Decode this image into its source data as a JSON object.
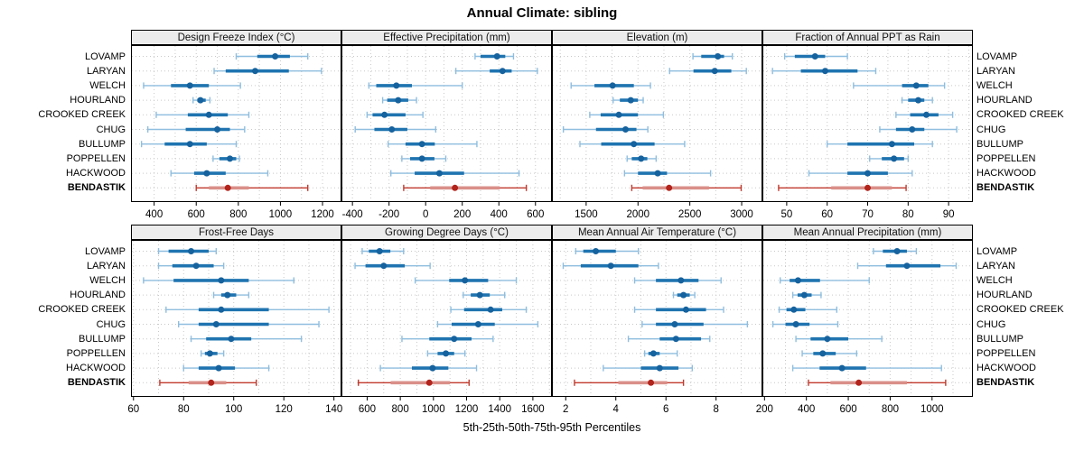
{
  "title": "Annual Climate: sibling",
  "xlabel": "5th-25th-50th-75th-95th Percentiles",
  "percentile_labels": [
    "5th",
    "25th",
    "50th",
    "75th",
    "95th"
  ],
  "stations": [
    "LOVAMP",
    "LARYAN",
    "WELCH",
    "HOURLAND",
    "CROOKED CREEK",
    "CHUG",
    "BULLUMP",
    "POPPELLEN",
    "HACKWOOD",
    "BENDASTIK"
  ],
  "highlight_station": "BENDASTIK",
  "colors": {
    "blue_thin": "#8FBEDF",
    "blue_thick": "#1F74B0",
    "blue_dot": "#15629E",
    "red_thin": "#C03A2E",
    "red_thick": "#D98F88",
    "red_dot": "#B2241C",
    "grid": "#C9C9C9",
    "strip_bg": "#ECECEC",
    "border": "#000000"
  },
  "chart_data": [
    {
      "type": "interval-dotplot",
      "title": "Design Freeze Index (°C)",
      "xlim": [
        290,
        1290
      ],
      "ticks": [
        400,
        600,
        800,
        1000,
        1200
      ],
      "rows": [
        {
          "station": "LOVAMP",
          "percentiles": [
            790,
            890,
            975,
            1045,
            1130
          ]
        },
        {
          "station": "LARYAN",
          "percentiles": [
            685,
            740,
            880,
            1040,
            1195
          ]
        },
        {
          "station": "WELCH",
          "percentiles": [
            350,
            480,
            570,
            660,
            810
          ]
        },
        {
          "station": "HOURLAND",
          "percentiles": [
            585,
            605,
            620,
            645,
            665
          ]
        },
        {
          "station": "CROOKED CREEK",
          "percentiles": [
            410,
            560,
            660,
            750,
            850
          ]
        },
        {
          "station": "CHUG",
          "percentiles": [
            370,
            550,
            700,
            760,
            830
          ]
        },
        {
          "station": "BULLUMP",
          "percentiles": [
            340,
            450,
            570,
            650,
            790
          ]
        },
        {
          "station": "POPPELLEN",
          "percentiles": [
            680,
            710,
            760,
            790,
            805
          ]
        },
        {
          "station": "HACKWOOD",
          "percentiles": [
            480,
            590,
            650,
            740,
            940
          ]
        },
        {
          "station": "BENDASTIK",
          "percentiles": [
            600,
            660,
            750,
            850,
            1130
          ]
        }
      ]
    },
    {
      "type": "interval-dotplot",
      "title": "Effective Precipitation (mm)",
      "xlim": [
        -460,
        690
      ],
      "ticks": [
        -400,
        -200,
        0,
        200,
        400,
        600
      ],
      "rows": [
        {
          "station": "LOVAMP",
          "percentiles": [
            270,
            300,
            390,
            435,
            480
          ]
        },
        {
          "station": "LARYAN",
          "percentiles": [
            165,
            350,
            420,
            470,
            610
          ]
        },
        {
          "station": "WELCH",
          "percentiles": [
            -310,
            -270,
            -160,
            -75,
            200
          ]
        },
        {
          "station": "HOURLAND",
          "percentiles": [
            -235,
            -210,
            -150,
            -95,
            -50
          ]
        },
        {
          "station": "CROOKED CREEK",
          "percentiles": [
            -320,
            -290,
            -225,
            -110,
            -15
          ]
        },
        {
          "station": "CHUG",
          "percentiles": [
            -385,
            -280,
            -185,
            -100,
            55
          ]
        },
        {
          "station": "BULLUMP",
          "percentiles": [
            -205,
            -110,
            -20,
            50,
            280
          ]
        },
        {
          "station": "POPPELLEN",
          "percentiles": [
            -130,
            -85,
            -20,
            48,
            110
          ]
        },
        {
          "station": "HACKWOOD",
          "percentiles": [
            -190,
            -60,
            75,
            210,
            510
          ]
        },
        {
          "station": "BENDASTIK",
          "percentiles": [
            -120,
            25,
            160,
            405,
            550
          ]
        }
      ]
    },
    {
      "type": "interval-dotplot",
      "title": "Elevation (m)",
      "xlim": [
        1170,
        3200
      ],
      "ticks": [
        1500,
        2000,
        2500,
        3000
      ],
      "rows": [
        {
          "station": "LOVAMP",
          "percentiles": [
            2530,
            2610,
            2770,
            2830,
            2910
          ]
        },
        {
          "station": "LARYAN",
          "percentiles": [
            2305,
            2535,
            2740,
            2900,
            3045
          ]
        },
        {
          "station": "WELCH",
          "percentiles": [
            1355,
            1580,
            1755,
            1960,
            2120
          ]
        },
        {
          "station": "HOURLAND",
          "percentiles": [
            1760,
            1825,
            1930,
            2000,
            2050
          ]
        },
        {
          "station": "CROOKED CREEK",
          "percentiles": [
            1535,
            1640,
            1815,
            2000,
            2245
          ]
        },
        {
          "station": "CHUG",
          "percentiles": [
            1280,
            1595,
            1880,
            1985,
            2095
          ]
        },
        {
          "station": "BULLUMP",
          "percentiles": [
            1440,
            1645,
            1960,
            2160,
            2450
          ]
        },
        {
          "station": "POPPELLEN",
          "percentiles": [
            1895,
            1940,
            2030,
            2090,
            2175
          ]
        },
        {
          "station": "HACKWOOD",
          "percentiles": [
            1870,
            2000,
            2190,
            2280,
            2700
          ]
        },
        {
          "station": "BENDASTIK",
          "percentiles": [
            1940,
            2045,
            2300,
            2685,
            2995
          ]
        }
      ]
    },
    {
      "type": "interval-dotplot",
      "title": "Fraction of Annual PPT as Rain",
      "xlim": [
        44,
        96
      ],
      "ticks": [
        50,
        60,
        70,
        80,
        90
      ],
      "rows": [
        {
          "station": "LOVAMP",
          "percentiles": [
            49.5,
            52,
            57,
            59.5,
            65
          ]
        },
        {
          "station": "LARYAN",
          "percentiles": [
            46.5,
            53.5,
            59.5,
            67.5,
            72
          ]
        },
        {
          "station": "WELCH",
          "percentiles": [
            66.5,
            78.5,
            82,
            85,
            89
          ]
        },
        {
          "station": "HOURLAND",
          "percentiles": [
            78.5,
            80,
            82.5,
            84,
            86
          ]
        },
        {
          "station": "CROOKED CREEK",
          "percentiles": [
            77,
            80.5,
            84.5,
            87.5,
            91
          ]
        },
        {
          "station": "CHUG",
          "percentiles": [
            73,
            77,
            81,
            84,
            92
          ]
        },
        {
          "station": "BULLUMP",
          "percentiles": [
            60,
            65,
            76,
            81.5,
            86
          ]
        },
        {
          "station": "POPPELLEN",
          "percentiles": [
            70.5,
            73.5,
            76.5,
            79,
            80
          ]
        },
        {
          "station": "HACKWOOD",
          "percentiles": [
            55.5,
            65,
            70,
            75,
            81
          ]
        },
        {
          "station": "BENDASTIK",
          "percentiles": [
            48,
            61,
            70,
            76,
            79.5
          ]
        }
      ]
    },
    {
      "type": "interval-dotplot",
      "title": "Frost-Free Days",
      "xlim": [
        59,
        143
      ],
      "ticks": [
        60,
        80,
        100,
        120,
        140
      ],
      "rows": [
        {
          "station": "LOVAMP",
          "percentiles": [
            70,
            74,
            83,
            90,
            93
          ]
        },
        {
          "station": "LARYAN",
          "percentiles": [
            70,
            75.5,
            85,
            92,
            96
          ]
        },
        {
          "station": "WELCH",
          "percentiles": [
            64,
            76,
            95,
            106,
            124
          ]
        },
        {
          "station": "HOURLAND",
          "percentiles": [
            92,
            95,
            97.5,
            101,
            106
          ]
        },
        {
          "station": "CROOKED CREEK",
          "percentiles": [
            73,
            86,
            95,
            114,
            138
          ]
        },
        {
          "station": "CHUG",
          "percentiles": [
            78,
            86,
            93,
            114,
            134
          ]
        },
        {
          "station": "BULLUMP",
          "percentiles": [
            83,
            89,
            99,
            107,
            127
          ]
        },
        {
          "station": "POPPELLEN",
          "percentiles": [
            87,
            88.5,
            90.5,
            93.5,
            96
          ]
        },
        {
          "station": "HACKWOOD",
          "percentiles": [
            80,
            86,
            94,
            100.5,
            114
          ]
        },
        {
          "station": "BENDASTIK",
          "percentiles": [
            70.5,
            82,
            91,
            97,
            109
          ]
        }
      ]
    },
    {
      "type": "interval-dotplot",
      "title": "Growing Degree Days (°C)",
      "xlim": [
        445,
        1715
      ],
      "ticks": [
        600,
        800,
        1000,
        1200,
        1400,
        1600
      ],
      "rows": [
        {
          "station": "LOVAMP",
          "percentiles": [
            570,
            610,
            675,
            740,
            820
          ]
        },
        {
          "station": "LARYAN",
          "percentiles": [
            527,
            590,
            700,
            827,
            980
          ]
        },
        {
          "station": "WELCH",
          "percentiles": [
            890,
            1095,
            1190,
            1330,
            1500
          ]
        },
        {
          "station": "HOURLAND",
          "percentiles": [
            1180,
            1225,
            1280,
            1340,
            1430
          ]
        },
        {
          "station": "CROOKED CREEK",
          "percentiles": [
            1105,
            1185,
            1345,
            1415,
            1560
          ]
        },
        {
          "station": "CHUG",
          "percentiles": [
            1025,
            1110,
            1270,
            1370,
            1630
          ]
        },
        {
          "station": "BULLUMP",
          "percentiles": [
            810,
            975,
            1125,
            1230,
            1360
          ]
        },
        {
          "station": "POPPELLEN",
          "percentiles": [
            965,
            1025,
            1075,
            1125,
            1190
          ]
        },
        {
          "station": "HACKWOOD",
          "percentiles": [
            680,
            870,
            995,
            1090,
            1260
          ]
        },
        {
          "station": "BENDASTIK",
          "percentiles": [
            547,
            742,
            975,
            1100,
            1215
          ]
        }
      ]
    },
    {
      "type": "interval-dotplot",
      "title": "Mean Annual Air Temperature (°C)",
      "xlim": [
        1.45,
        9.85
      ],
      "ticks": [
        2,
        4,
        6,
        8
      ],
      "rows": [
        {
          "station": "LOVAMP",
          "percentiles": [
            2.4,
            2.7,
            3.2,
            4.0,
            4.9
          ]
        },
        {
          "station": "LARYAN",
          "percentiles": [
            1.9,
            2.6,
            3.8,
            4.9,
            5.7
          ]
        },
        {
          "station": "WELCH",
          "percentiles": [
            4.75,
            5.6,
            6.6,
            7.3,
            8.2
          ]
        },
        {
          "station": "HOURLAND",
          "percentiles": [
            6.3,
            6.45,
            6.7,
            6.95,
            7.15
          ]
        },
        {
          "station": "CROOKED CREEK",
          "percentiles": [
            4.75,
            5.6,
            6.8,
            7.6,
            8.3
          ]
        },
        {
          "station": "CHUG",
          "percentiles": [
            5.05,
            5.6,
            6.35,
            7.5,
            9.25
          ]
        },
        {
          "station": "BULLUMP",
          "percentiles": [
            4.5,
            5.75,
            6.4,
            7.4,
            7.75
          ]
        },
        {
          "station": "POPPELLEN",
          "percentiles": [
            5.15,
            5.3,
            5.5,
            5.75,
            6.45
          ]
        },
        {
          "station": "HACKWOOD",
          "percentiles": [
            3.5,
            5.0,
            5.75,
            6.5,
            7.05
          ]
        },
        {
          "station": "BENDASTIK",
          "percentiles": [
            2.35,
            4.1,
            5.4,
            6.05,
            6.7
          ]
        }
      ]
    },
    {
      "type": "interval-dotplot",
      "title": "Mean Annual Precipitation (mm)",
      "xlim": [
        190,
        1195
      ],
      "ticks": [
        200,
        400,
        600,
        800,
        1000
      ],
      "rows": [
        {
          "station": "LOVAMP",
          "percentiles": [
            720,
            765,
            833,
            880,
            925
          ]
        },
        {
          "station": "LARYAN",
          "percentiles": [
            645,
            780,
            880,
            1040,
            1115
          ]
        },
        {
          "station": "WELCH",
          "percentiles": [
            275,
            320,
            360,
            465,
            700
          ]
        },
        {
          "station": "HOURLAND",
          "percentiles": [
            335,
            358,
            390,
            425,
            470
          ]
        },
        {
          "station": "CROOKED CREEK",
          "percentiles": [
            270,
            305,
            340,
            395,
            545
          ]
        },
        {
          "station": "CHUG",
          "percentiles": [
            240,
            300,
            350,
            415,
            550
          ]
        },
        {
          "station": "BULLUMP",
          "percentiles": [
            350,
            420,
            500,
            600,
            760
          ]
        },
        {
          "station": "POPPELLEN",
          "percentiles": [
            380,
            433,
            478,
            540,
            640
          ]
        },
        {
          "station": "HACKWOOD",
          "percentiles": [
            335,
            463,
            570,
            685,
            1045
          ]
        },
        {
          "station": "BENDASTIK",
          "percentiles": [
            410,
            515,
            650,
            880,
            1065
          ]
        }
      ]
    }
  ]
}
